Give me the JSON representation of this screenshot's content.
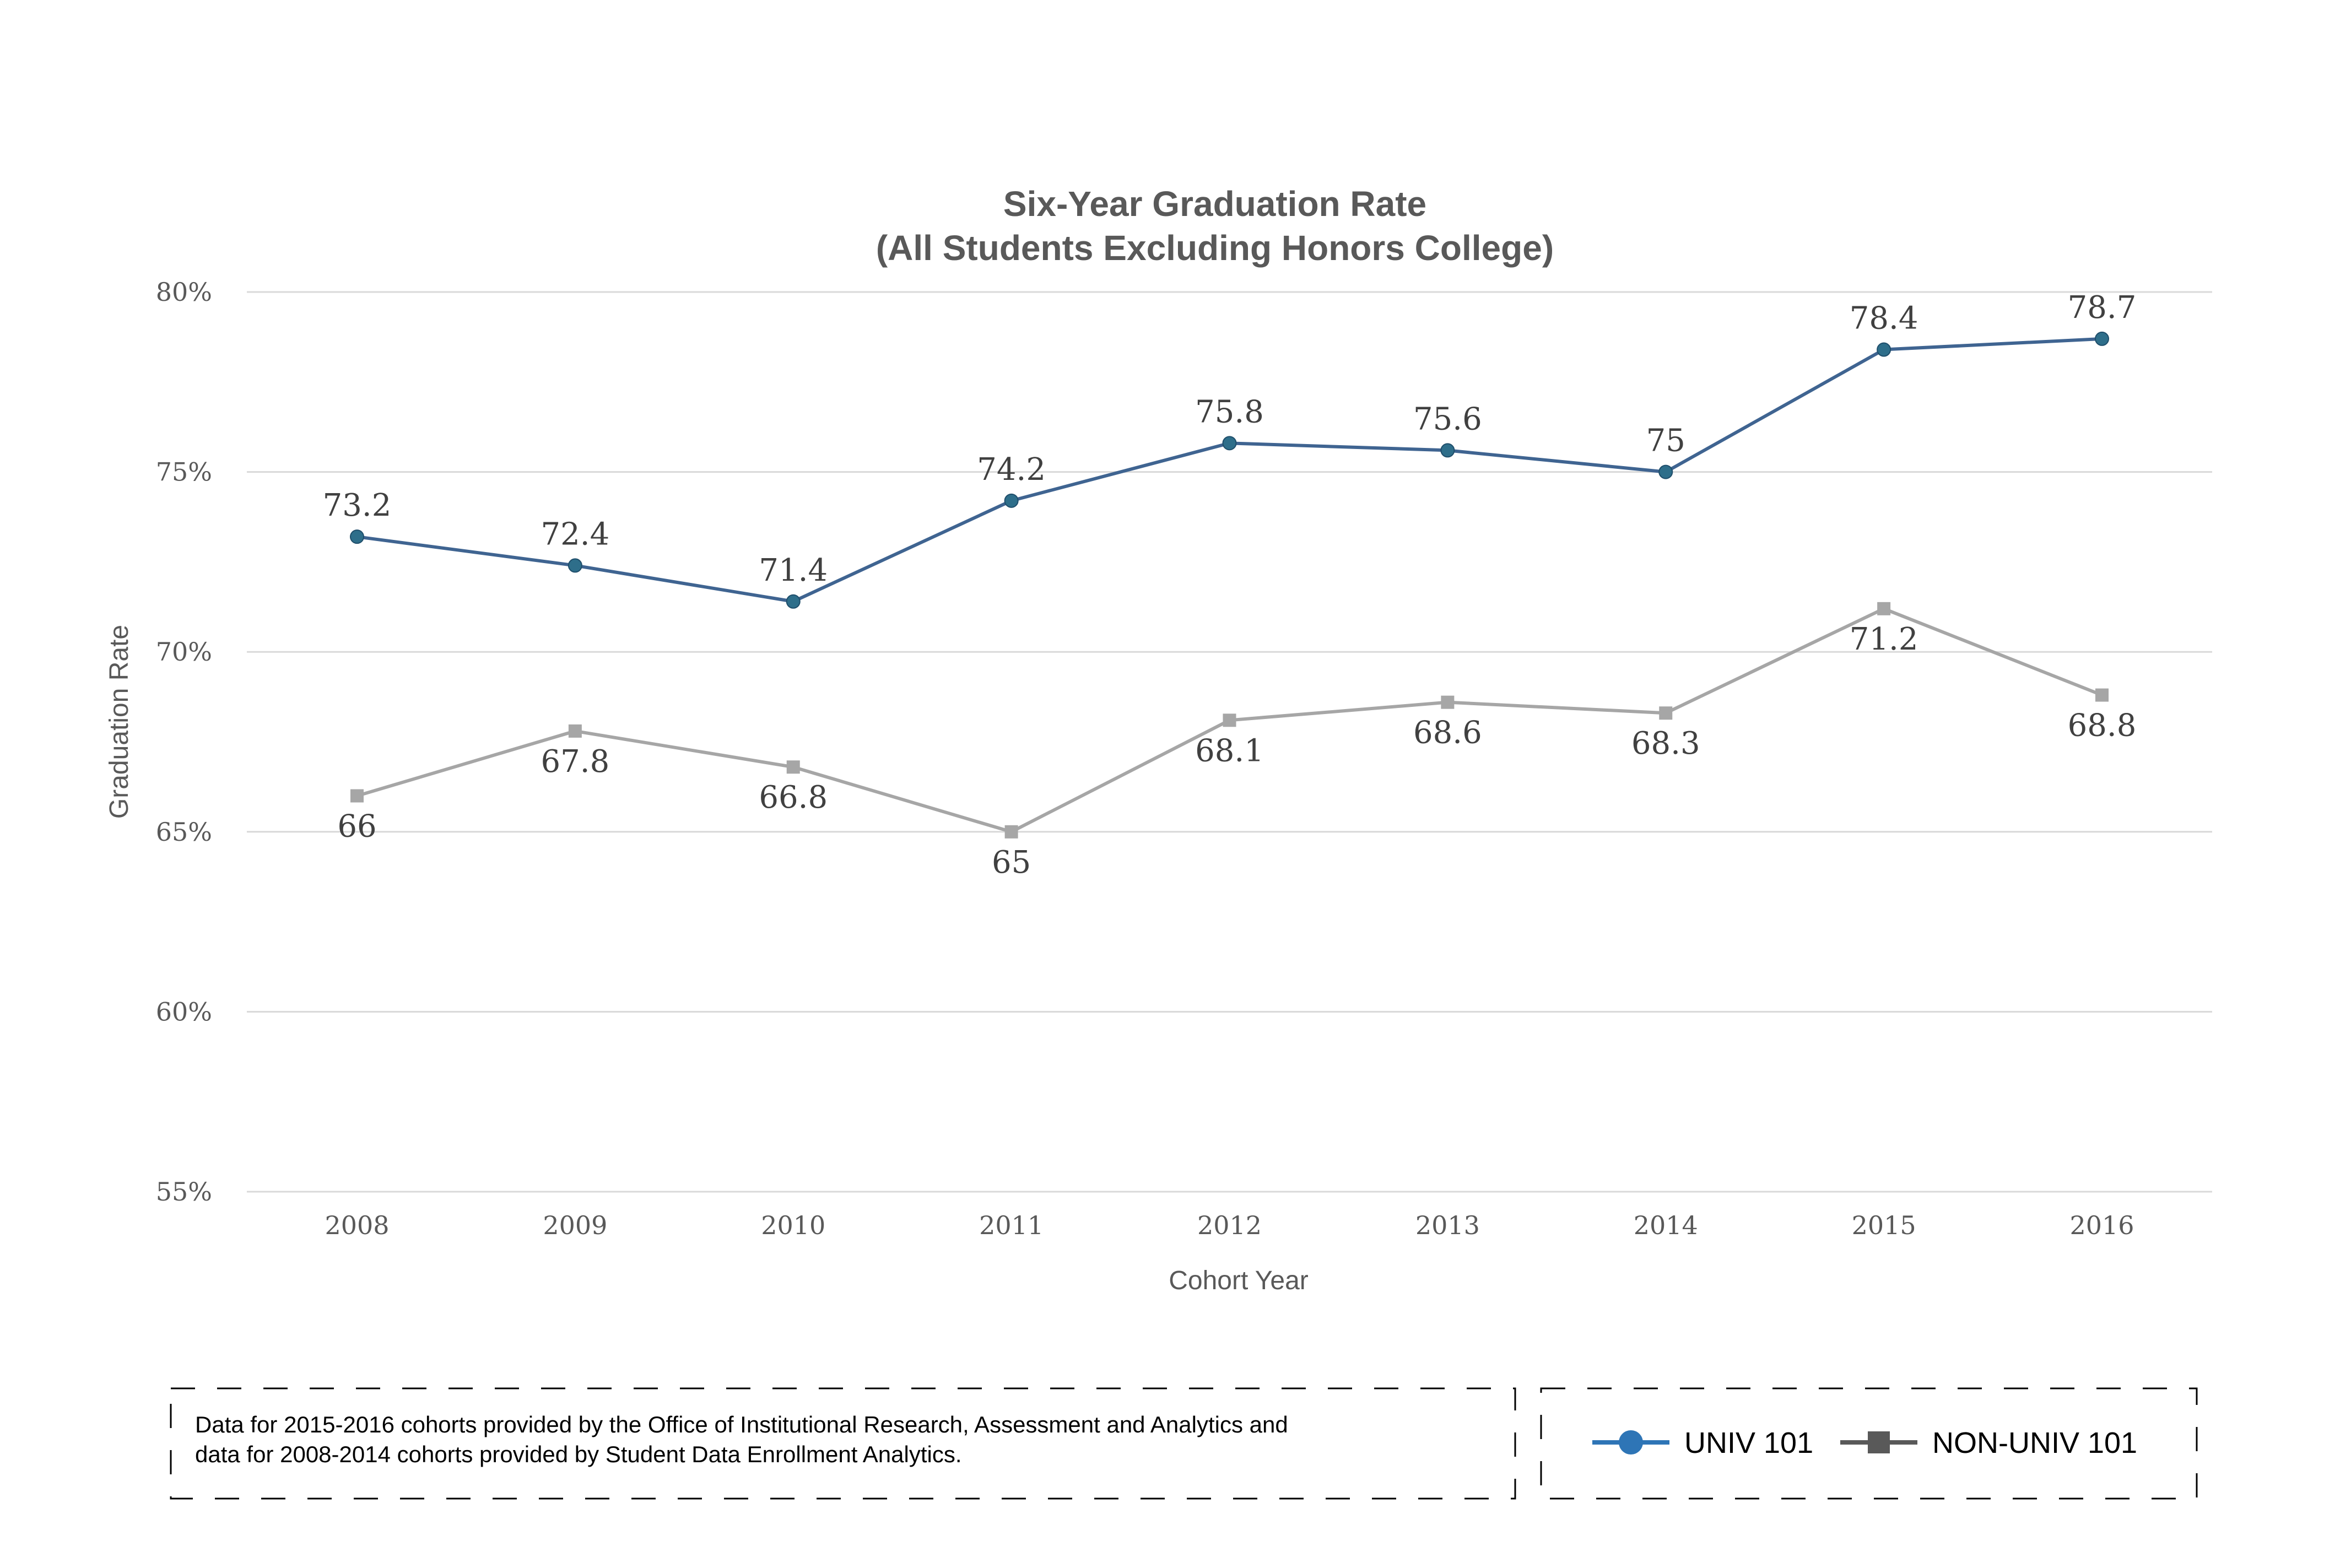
{
  "chart_data": {
    "type": "line",
    "title": "Six-Year Graduation Rate",
    "subtitle": "(All Students Excluding Honors College)",
    "xlabel": "Cohort Year",
    "ylabel": "Graduation Rate",
    "categories": [
      "2008",
      "2009",
      "2010",
      "2011",
      "2012",
      "2013",
      "2014",
      "2015",
      "2016"
    ],
    "ylim": [
      55,
      80
    ],
    "yticks": [
      55,
      60,
      65,
      70,
      75,
      80
    ],
    "ytick_labels": [
      "55%",
      "60%",
      "65%",
      "70%",
      "75%",
      "80%"
    ],
    "grid": true,
    "legend_position": "bottom-right",
    "series": [
      {
        "name": "UNIV 101",
        "color": "#3f6491",
        "marker_color": "#2e6e8a",
        "legend_color": "#2e75b6",
        "marker": "circle",
        "label_position": "above",
        "values": [
          73.2,
          72.4,
          71.4,
          74.2,
          75.8,
          75.6,
          75,
          78.4,
          78.7
        ],
        "labels": [
          "73.2",
          "72.4",
          "71.4",
          "74.2",
          "75.8",
          "75.6",
          "75",
          "78.4",
          "78.7"
        ]
      },
      {
        "name": "NON-UNIV 101",
        "color": "#a6a6a6",
        "marker_color": "#a6a6a6",
        "legend_color": "#595959",
        "marker": "square",
        "label_position": "below",
        "values": [
          66,
          67.8,
          66.8,
          65,
          68.1,
          68.6,
          68.3,
          71.2,
          68.8
        ],
        "labels": [
          "66",
          "67.8",
          "66.8",
          "65",
          "68.1",
          "68.6",
          "68.3",
          "71.2",
          "68.8"
        ]
      }
    ],
    "note_lines": [
      "Data for 2015-2016 cohorts provided by the Office of Institutional Research, Assessment and Analytics and",
      "data for 2008-2014 cohorts provided by Student Data Enrollment Analytics."
    ]
  }
}
